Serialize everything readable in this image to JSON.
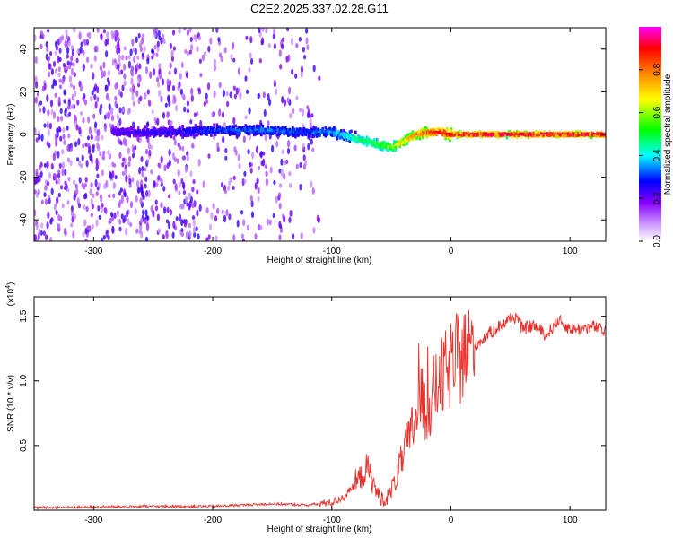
{
  "title": "C2E2.2025.337.02.28.G11",
  "chart_data": [
    {
      "type": "heatmap",
      "name": "spectrogram",
      "xlabel": "Height of straight line (km)",
      "ylabel": "Frequency (Hz)",
      "xlim": [
        -350,
        130
      ],
      "ylim": [
        -50,
        50
      ],
      "xticks": [
        -300,
        -200,
        -100,
        0,
        100
      ],
      "yticks": [
        -40,
        -20,
        0,
        20,
        40
      ],
      "colorbar": {
        "label": "Normalized spectral amplitude",
        "range": [
          0,
          1
        ],
        "ticks": [
          "0.0",
          "0.2",
          "0.4",
          "0.6",
          "0.8"
        ],
        "colors": [
          "#ffffff",
          "#8800ff",
          "#0000ff",
          "#00ffff",
          "#00ff00",
          "#ffff00",
          "#ff8800",
          "#ff0000",
          "#ff00ff"
        ]
      },
      "ridge": {
        "x": [
          -280,
          -240,
          -200,
          -160,
          -120,
          -100,
          -80,
          -60,
          -50,
          -40,
          -30,
          -20,
          -10,
          0,
          30,
          60,
          90,
          130
        ],
        "freq_hz": [
          1,
          1,
          2,
          2,
          1,
          1,
          -2,
          -5,
          -6,
          -3,
          0,
          1,
          1,
          0,
          0,
          0,
          0,
          0
        ],
        "amplitude": [
          0.18,
          0.22,
          0.28,
          0.32,
          0.3,
          0.35,
          0.45,
          0.55,
          0.6,
          0.7,
          0.8,
          0.85,
          0.9,
          0.92,
          0.95,
          0.95,
          0.95,
          0.95
        ]
      },
      "noise_region": {
        "x_from": -350,
        "x_to": -110,
        "amplitude": 0.05
      }
    },
    {
      "type": "line",
      "name": "snr",
      "xlabel": "Height of straight line (km)",
      "ylabel": "SNR (10 * v/v)",
      "yscale_label": "(x10",
      "yscale_exponent": "4",
      "xlim": [
        -350,
        130
      ],
      "ylim": [
        0,
        1.65
      ],
      "xticks": [
        -300,
        -200,
        -100,
        0,
        100
      ],
      "yticks": [
        "0.5",
        "1.0",
        "1.5"
      ],
      "color": "#e8312b",
      "series": [
        {
          "name": "SNR",
          "x": [
            -350,
            -300,
            -250,
            -200,
            -150,
            -120,
            -100,
            -90,
            -80,
            -70,
            -65,
            -60,
            -55,
            -50,
            -45,
            -40,
            -35,
            -30,
            -25,
            -20,
            -15,
            -10,
            -5,
            0,
            10,
            20,
            30,
            40,
            50,
            55,
            60,
            70,
            80,
            90,
            100,
            110,
            120,
            130
          ],
          "y": [
            0.02,
            0.025,
            0.03,
            0.03,
            0.05,
            0.04,
            0.06,
            0.1,
            0.2,
            0.33,
            0.2,
            0.1,
            0.08,
            0.15,
            0.28,
            0.42,
            0.55,
            0.7,
            0.85,
            0.75,
            0.9,
            1.0,
            1.05,
            1.12,
            1.2,
            1.27,
            1.35,
            1.42,
            1.48,
            1.5,
            1.4,
            1.43,
            1.35,
            1.47,
            1.4,
            1.4,
            1.42,
            1.38
          ]
        }
      ]
    }
  ]
}
